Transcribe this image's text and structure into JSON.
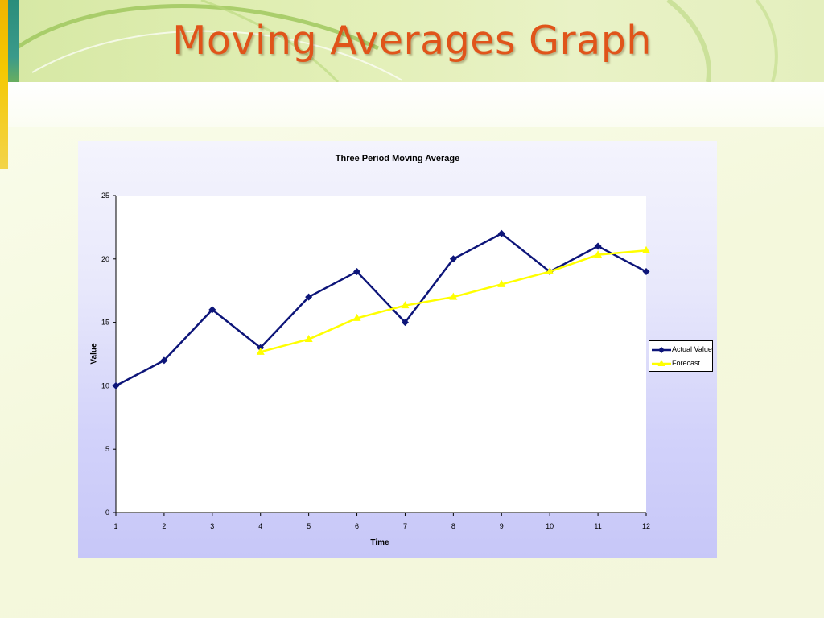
{
  "slide": {
    "title": "Moving Averages Graph"
  },
  "colors": {
    "actual": "#0d1579",
    "forecast": "#ffff00",
    "title": "#e0541a"
  },
  "chart_data": {
    "type": "line",
    "title": "Three Period Moving Average",
    "xlabel": "Time",
    "ylabel": "Value",
    "x": [
      1,
      2,
      3,
      4,
      5,
      6,
      7,
      8,
      9,
      10,
      11,
      12
    ],
    "ylim": [
      0,
      25
    ],
    "yticks": [
      0,
      5,
      10,
      15,
      20,
      25
    ],
    "grid": false,
    "legend": "right",
    "series": [
      {
        "name": "Actual Value",
        "marker": "diamond",
        "color": "#0d1579",
        "values": [
          10,
          12,
          16,
          13,
          17,
          19,
          15,
          20,
          22,
          19,
          21,
          19
        ]
      },
      {
        "name": "Forecast",
        "marker": "triangle",
        "color": "#ffff00",
        "values": [
          null,
          null,
          null,
          12.67,
          13.67,
          15.33,
          16.33,
          17,
          18,
          19,
          20.33,
          20.67
        ]
      }
    ]
  }
}
